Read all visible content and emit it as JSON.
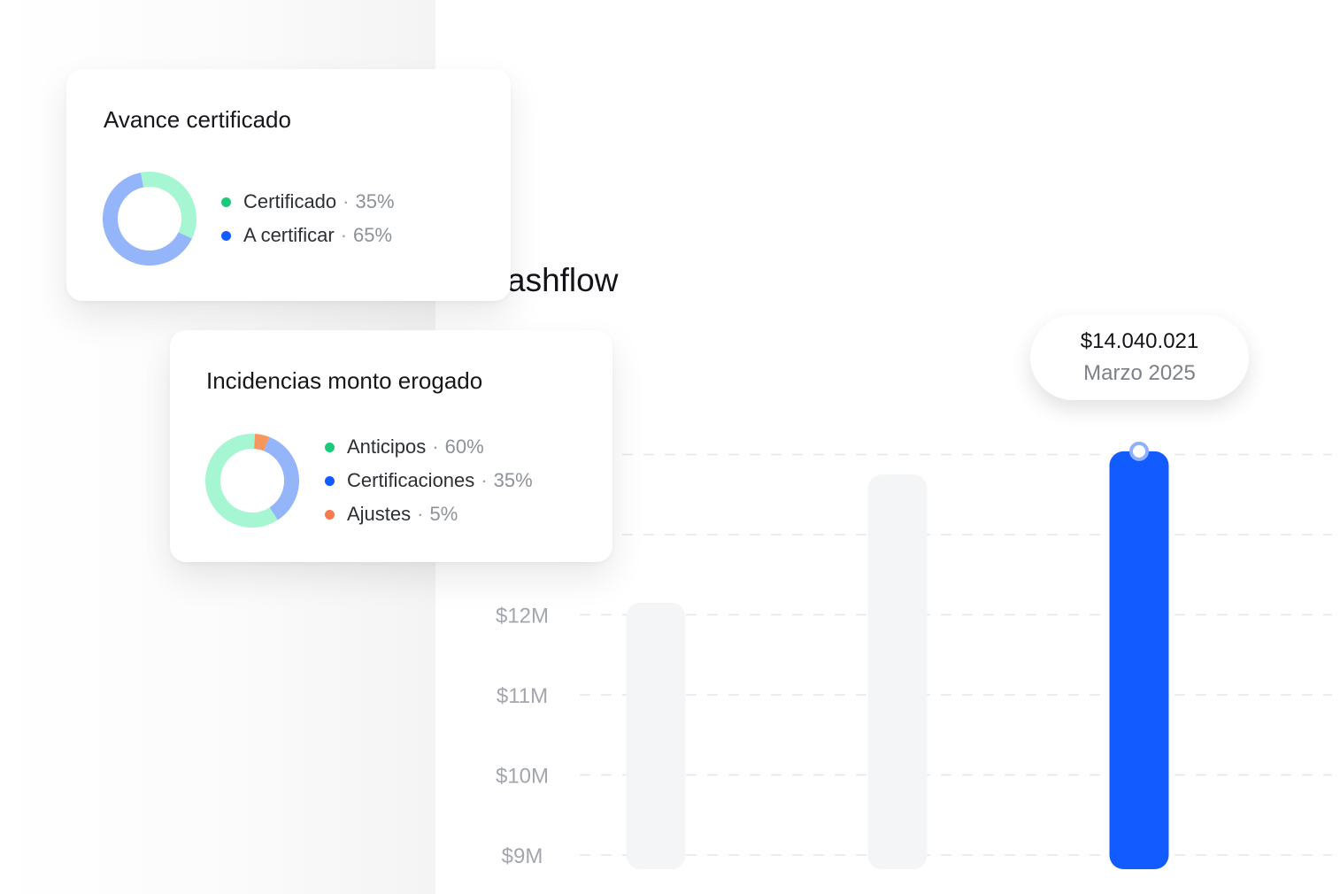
{
  "cashflow": {
    "title": "ashflow",
    "colors": {
      "active_bar": "#125BFF",
      "inactive_bar": "#F4F5F6",
      "gridline": "#E4E6EA",
      "marker": "#8FB0FF"
    },
    "tooltip": {
      "value": "$14.040.021",
      "label": "Marzo 2025"
    }
  },
  "chart_data": [
    {
      "type": "bar",
      "title": "ashflow",
      "y_tick_labels": [
        "$9M",
        "$10M",
        "$11M",
        "$12M"
      ],
      "ylim": [
        9,
        14.4
      ],
      "grid": true,
      "highlighted_index": 2,
      "series": [
        {
          "values": [
            12.15,
            13.75,
            14.04
          ]
        }
      ],
      "annotations": [
        {
          "value": "$14.040.021",
          "label": "Marzo 2025"
        }
      ]
    },
    {
      "type": "pie",
      "title": "Avance certificado",
      "slices": [
        {
          "label": "Certificado",
          "value": 35,
          "pct_label": "35%",
          "color": "#1CC97A",
          "ring_color": "#A6F5D3"
        },
        {
          "label": "A certificar",
          "value": 65,
          "pct_label": "65%",
          "color": "#125BFF",
          "ring_color": "#94B5F9"
        }
      ]
    },
    {
      "type": "pie",
      "title": "Incidencias monto erogado",
      "slices": [
        {
          "label": "Anticipos",
          "value": 60,
          "pct_label": "60%",
          "color": "#1CC97A",
          "ring_color": "#A6F5D3"
        },
        {
          "label": "Certificaciones",
          "value": 35,
          "pct_label": "35%",
          "color": "#125BFF",
          "ring_color": "#94B5F9"
        },
        {
          "label": "Ajustes",
          "value": 5,
          "pct_label": "5%",
          "color": "#F47B4D",
          "ring_color": "#F8965D"
        }
      ]
    }
  ]
}
